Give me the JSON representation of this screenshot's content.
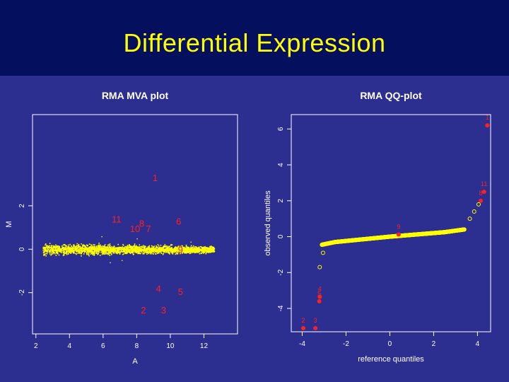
{
  "slide": {
    "title": "Differential Expression"
  },
  "colors": {
    "background": "#2c2f8f",
    "title_bar": "#040f5e",
    "points": "#ffff00",
    "highlight": "#ff2020",
    "axes": "#ffffff"
  },
  "chart_data": [
    {
      "type": "scatter",
      "title": "RMA MVA plot",
      "xlabel": "A",
      "ylabel": "M",
      "xlim": [
        1.8,
        14.0
      ],
      "ylim": [
        -3.9,
        6.2
      ],
      "xticks": [
        "2",
        "4",
        "6",
        "8",
        "10",
        "12"
      ],
      "yticks": [
        "-2",
        "0",
        "2"
      ],
      "grid": false,
      "cloud": {
        "x_range": [
          2.4,
          12.6
        ],
        "y_center": 0.0,
        "y_spread": 0.18
      },
      "points": [
        {
          "label": "1",
          "x": 9.1,
          "y": 3.3
        },
        {
          "label": "11",
          "x": 6.8,
          "y": 1.4
        },
        {
          "label": "10",
          "x": 7.9,
          "y": 0.95
        },
        {
          "label": "8",
          "x": 8.3,
          "y": 1.2
        },
        {
          "label": "7",
          "x": 8.7,
          "y": 0.95
        },
        {
          "label": "6",
          "x": 10.5,
          "y": 1.3
        },
        {
          "label": "9",
          "x": 10.6,
          "y": 0.0
        },
        {
          "label": "4",
          "x": 9.3,
          "y": -1.8
        },
        {
          "label": "5",
          "x": 10.6,
          "y": -1.95
        },
        {
          "label": "2",
          "x": 8.4,
          "y": -2.8
        },
        {
          "label": "3",
          "x": 9.6,
          "y": -2.8
        }
      ]
    },
    {
      "type": "scatter",
      "title": "RMA QQ-plot",
      "xlabel": "reference quantiles",
      "ylabel": "observed quantiles",
      "xlim": [
        -4.5,
        4.6
      ],
      "ylim": [
        -5.3,
        6.8
      ],
      "xticks": [
        "-4",
        "-2",
        "0",
        "2",
        "4"
      ],
      "yticks": [
        "-4",
        "-2",
        "0",
        "2",
        "4",
        "6"
      ],
      "grid": false,
      "curve": [
        [
          -3.1,
          -0.45
        ],
        [
          -2.5,
          -0.3
        ],
        [
          0.0,
          0.0
        ],
        [
          2.5,
          0.25
        ],
        [
          3.4,
          0.4
        ]
      ],
      "points": [
        {
          "label": "2",
          "x": -3.95,
          "y": -5.1
        },
        {
          "label": "3",
          "x": -3.4,
          "y": -5.1
        },
        {
          "label": "4",
          "x": -3.2,
          "y": -3.35
        },
        {
          "label": "5",
          "x": -3.22,
          "y": -3.6
        },
        {
          "label": "9",
          "x": 0.4,
          "y": 0.12
        },
        {
          "label": "8",
          "x": 4.15,
          "y": 2.0
        },
        {
          "label": "11",
          "x": 4.3,
          "y": 2.5
        },
        {
          "label": "1",
          "x": 4.45,
          "y": 6.2
        }
      ]
    }
  ]
}
